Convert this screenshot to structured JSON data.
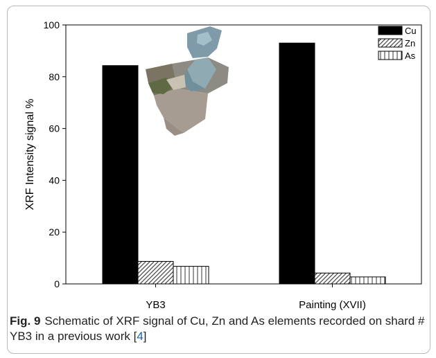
{
  "chart_data": {
    "type": "bar",
    "categories": [
      "YB3",
      "Painting (XVII)"
    ],
    "series": [
      {
        "name": "Cu",
        "values": [
          84.3,
          93.0
        ],
        "fill": "#000000",
        "pattern": "solid"
      },
      {
        "name": "Zn",
        "values": [
          8.7,
          4.2
        ],
        "fill": "#ffffff",
        "pattern": "diagonal"
      },
      {
        "name": "As",
        "values": [
          6.8,
          2.7
        ],
        "fill": "#ffffff",
        "pattern": "vertical"
      }
    ],
    "ylabel": "XRF Intensity signal %",
    "xlabel": "",
    "title": "",
    "ylim": [
      0,
      100
    ],
    "yticks": [
      0,
      20,
      40,
      60,
      80,
      100
    ],
    "legend_position": "top-right",
    "grid": false,
    "inset_image": "pottery-shard-photo"
  },
  "caption": {
    "label": "Fig. 9",
    "text_before": "Schematic of XRF signal of Cu, Zn and As elements recorded on shard # YB3 in a previous work [",
    "ref": "4",
    "text_after": "]"
  }
}
